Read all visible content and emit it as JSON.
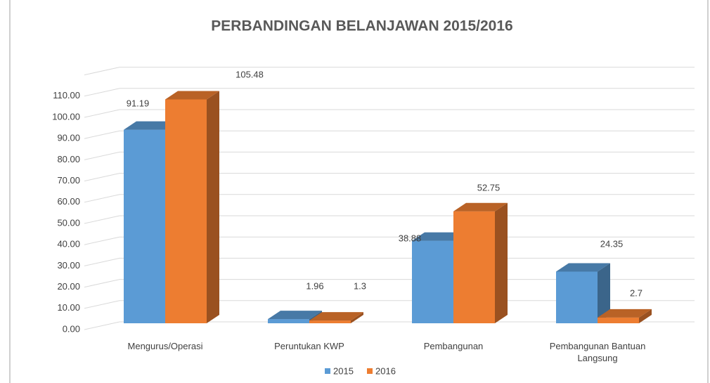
{
  "chart_data": {
    "type": "bar3d",
    "title": "PERBANDINGAN BELANJAWAN 2015/2016",
    "categories": [
      "Mengurus/Operasi",
      "Peruntukan KWP",
      "Pembangunan",
      "Pembangunan Bantuan Langsung"
    ],
    "series": [
      {
        "name": "2015",
        "color": "#5b9bd5",
        "values": [
          91.19,
          1.96,
          38.88,
          24.35
        ]
      },
      {
        "name": "2016",
        "color": "#ed7d31",
        "values": [
          105.48,
          1.3,
          52.75,
          2.7
        ]
      }
    ],
    "ylim": [
      0,
      120
    ],
    "yticks": [
      {
        "value": 0,
        "label": "0.00"
      },
      {
        "value": 10,
        "label": "10.00"
      },
      {
        "value": 20,
        "label": "20.00"
      },
      {
        "value": 30,
        "label": "30.00"
      },
      {
        "value": 40,
        "label": "40.00"
      },
      {
        "value": 50,
        "label": "50.00"
      },
      {
        "value": 60,
        "label": "60.00"
      },
      {
        "value": 70,
        "label": "70.00"
      },
      {
        "value": 80,
        "label": "80.00"
      },
      {
        "value": 90,
        "label": "90.00"
      },
      {
        "value": 100,
        "label": "100.00"
      },
      {
        "value": 110,
        "label": "110.00"
      }
    ],
    "grid": true,
    "legend": "bottom"
  }
}
